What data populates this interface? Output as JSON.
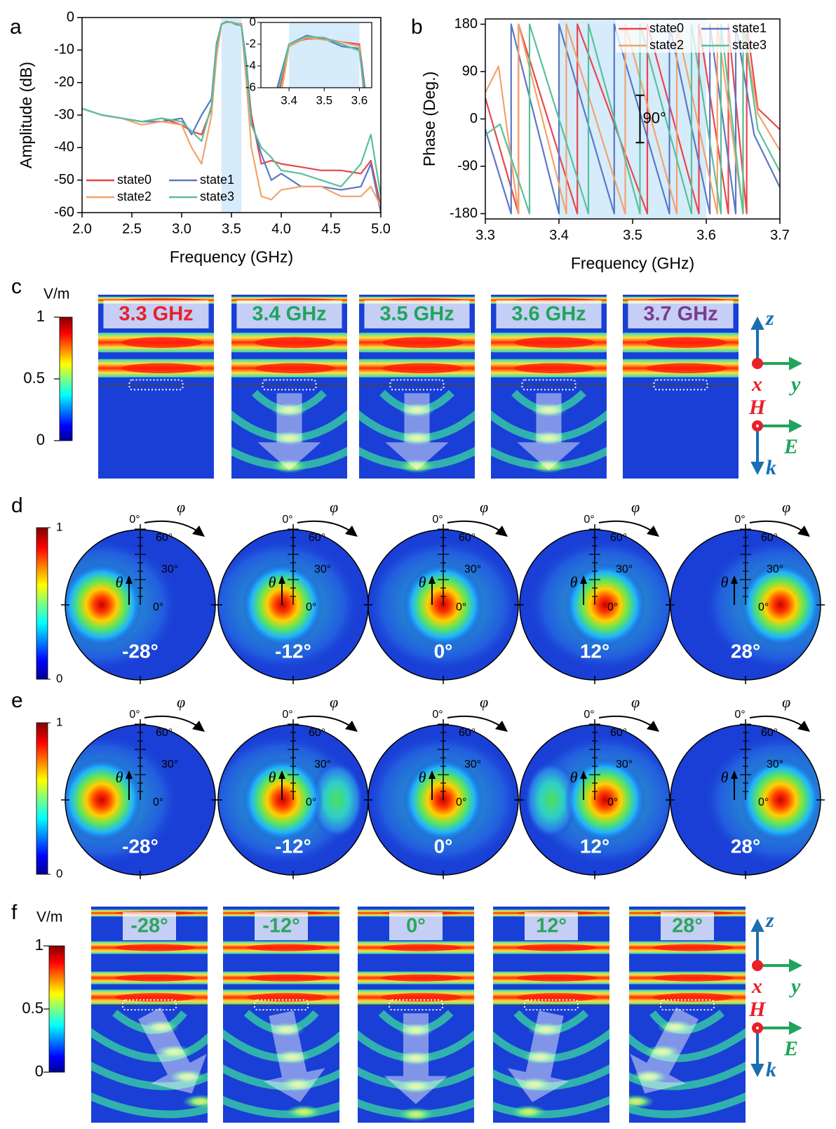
{
  "panel_letters": [
    "a",
    "b",
    "c",
    "d",
    "e",
    "f"
  ],
  "chart_data": [
    {
      "type": "line",
      "xlabel": "Frequency (GHz)",
      "ylabel": "Amplitude (dB)",
      "x": [
        2.0,
        2.2,
        2.4,
        2.6,
        2.8,
        3.0,
        3.1,
        3.2,
        3.3,
        3.35,
        3.4,
        3.45,
        3.5,
        3.55,
        3.6,
        3.65,
        3.7,
        3.8,
        3.9,
        4.0,
        4.2,
        4.4,
        4.6,
        4.8,
        4.9,
        5.0
      ],
      "xlim": [
        2,
        5
      ],
      "xticks": [
        {
          "value": 2,
          "label": "2.0"
        },
        2.5,
        {
          "value": 3,
          "label": "3.0"
        },
        3.5,
        {
          "value": 4,
          "label": "4.0"
        },
        4.5,
        {
          "value": 5,
          "label": "5.0"
        }
      ],
      "ylim": [
        -60,
        0
      ],
      "yticks": [
        0,
        -10,
        -20,
        -30,
        -40,
        -50,
        -60
      ],
      "highlight": [
        3.4,
        3.6
      ],
      "highlight_color": "#d6ecfb",
      "legend": "lower left",
      "series": [
        {
          "name": "state0",
          "color": "#e8474a",
          "values": [
            -28,
            -30,
            -31,
            -32,
            -31,
            -33,
            -35,
            -36,
            -28,
            -10,
            -2,
            -1.5,
            -1.5,
            -1.8,
            -2,
            -15,
            -30,
            -45,
            -44,
            -45,
            -46,
            -47,
            -47,
            -48,
            -44,
            -58
          ]
        },
        {
          "name": "state1",
          "color": "#5a78c4",
          "values": [
            -28,
            -30,
            -31,
            -32,
            -32,
            -31,
            -36,
            -30,
            -25,
            -8,
            -2,
            -1.2,
            -1.5,
            -2.2,
            -2.4,
            -14,
            -32,
            -42,
            -50,
            -48,
            -52,
            -52,
            -53,
            -52,
            -45,
            -60
          ]
        },
        {
          "name": "state2",
          "color": "#f2a36b",
          "values": [
            -28,
            -30,
            -31,
            -33,
            -32,
            -33,
            -40,
            -45,
            -30,
            -12,
            -2.2,
            -1.4,
            -1.6,
            -1.8,
            -2.2,
            -20,
            -40,
            -55,
            -56,
            -53,
            -52,
            -52,
            -55,
            -55,
            -52,
            -58
          ]
        },
        {
          "name": "state3",
          "color": "#5bbf9a",
          "values": [
            -28,
            -30,
            -31,
            -32,
            -31,
            -32,
            -35,
            -38,
            -27,
            -9,
            -2,
            -1.3,
            -1.4,
            -2,
            -2.6,
            -16,
            -33,
            -40,
            -43,
            -47,
            -48,
            -50,
            -52,
            -45,
            -36,
            -55
          ]
        }
      ],
      "inset": {
        "xlim": [
          3.32,
          3.635
        ],
        "xticks": [
          3.4,
          3.5,
          3.6
        ],
        "ylim": [
          -6,
          0
        ],
        "yticks": [
          0,
          -2,
          -4,
          -6
        ],
        "highlight": [
          3.4,
          3.6
        ]
      }
    },
    {
      "type": "line",
      "xlabel": "Frequency (GHz)",
      "ylabel": "Phase (Deg.)",
      "xlim": [
        3.3,
        3.7
      ],
      "xticks": [
        3.3,
        3.4,
        3.5,
        3.6,
        3.7
      ],
      "ylim": [
        -190,
        190
      ],
      "yticks": [
        -180,
        -90,
        0,
        90,
        180
      ],
      "highlight": [
        3.4,
        3.6
      ],
      "highlight_color": "#d6ecfb",
      "legend": "upper right",
      "series": [
        {
          "name": "state0",
          "color": "#e8474a",
          "x": [
            3.3,
            3.345,
            3.345,
            3.425,
            3.425,
            3.52,
            3.52,
            3.59,
            3.59,
            3.63,
            3.63,
            3.655,
            3.655,
            3.67,
            3.7
          ],
          "values": [
            40,
            -180,
            180,
            -180,
            180,
            -180,
            180,
            -180,
            180,
            -180,
            180,
            -180,
            180,
            20,
            -20
          ]
        },
        {
          "name": "state1",
          "color": "#5a78c4",
          "x": [
            3.3,
            3.335,
            3.335,
            3.4,
            3.4,
            3.475,
            3.475,
            3.55,
            3.55,
            3.605,
            3.605,
            3.64,
            3.64,
            3.665,
            3.7
          ],
          "values": [
            -20,
            -180,
            180,
            -180,
            180,
            -180,
            180,
            -180,
            180,
            -180,
            180,
            -180,
            180,
            -30,
            -130
          ]
        },
        {
          "name": "state2",
          "color": "#f2a36b",
          "x": [
            3.3,
            3.318,
            3.345,
            3.345,
            3.41,
            3.41,
            3.49,
            3.49,
            3.56,
            3.56,
            3.615,
            3.615,
            3.65,
            3.65,
            3.67,
            3.7
          ],
          "values": [
            50,
            100,
            -180,
            180,
            -180,
            180,
            -180,
            180,
            -180,
            180,
            -180,
            180,
            -180,
            180,
            10,
            -60
          ]
        },
        {
          "name": "state3",
          "color": "#5bbf9a",
          "x": [
            3.3,
            3.32,
            3.36,
            3.36,
            3.44,
            3.44,
            3.51,
            3.51,
            3.58,
            3.58,
            3.62,
            3.62,
            3.65,
            3.65,
            3.67,
            3.7
          ],
          "values": [
            -30,
            -10,
            -180,
            180,
            -180,
            180,
            -180,
            180,
            -180,
            180,
            -180,
            180,
            -180,
            180,
            -20,
            -100
          ]
        }
      ],
      "annotation": {
        "text": "90°",
        "x": 3.51,
        "from": 45,
        "to": -45
      }
    }
  ],
  "panel_c": {
    "colorbar": {
      "unit": "V/m",
      "lim": [
        0,
        1
      ],
      "ticks": [
        0,
        0.5,
        1
      ]
    },
    "maps": [
      {
        "label": "3.3 GHz",
        "color": "#e8202a"
      },
      {
        "label": "3.4 GHz",
        "color": "#1fa55a"
      },
      {
        "label": "3.5 GHz",
        "color": "#1fa55a"
      },
      {
        "label": "3.6 GHz",
        "color": "#1fa55a"
      },
      {
        "label": "3.7 GHz",
        "color": "#7a3b8f"
      }
    ],
    "axes": {
      "z": "z",
      "x": "x",
      "y": "y",
      "H": "H",
      "E": "E",
      "k": "k"
    }
  },
  "panel_d": {
    "colorbar": {
      "lim": [
        0,
        1
      ],
      "ticks": [
        0,
        1
      ]
    },
    "polar": {
      "phi_ref": "0°",
      "phi": "φ",
      "theta": "θ",
      "theta_ticks": [
        "60°",
        "30°",
        "0°"
      ]
    },
    "beams": [
      "-28°",
      "-12°",
      "0°",
      "12°",
      "28°"
    ]
  },
  "panel_e": {
    "colorbar": {
      "lim": [
        0,
        1
      ],
      "ticks": [
        0,
        1
      ]
    },
    "polar": {
      "phi_ref": "0°",
      "phi": "φ",
      "theta": "θ",
      "theta_ticks": [
        "60°",
        "30°",
        "0°"
      ]
    },
    "beams": [
      "-28°",
      "-12°",
      "0°",
      "12°",
      "28°"
    ]
  },
  "panel_f": {
    "colorbar": {
      "unit": "V/m",
      "lim": [
        0,
        1
      ],
      "ticks": [
        0,
        0.5,
        1
      ]
    },
    "maps": [
      {
        "label": "-28°",
        "color": "#2ca65a"
      },
      {
        "label": "-12°",
        "color": "#2ca65a"
      },
      {
        "label": "0°",
        "color": "#2ca65a"
      },
      {
        "label": "12°",
        "color": "#2ca65a"
      },
      {
        "label": "28°",
        "color": "#2ca65a"
      }
    ],
    "axes": {
      "z": "z",
      "x": "x",
      "y": "y",
      "H": "H",
      "E": "E",
      "k": "k"
    }
  }
}
